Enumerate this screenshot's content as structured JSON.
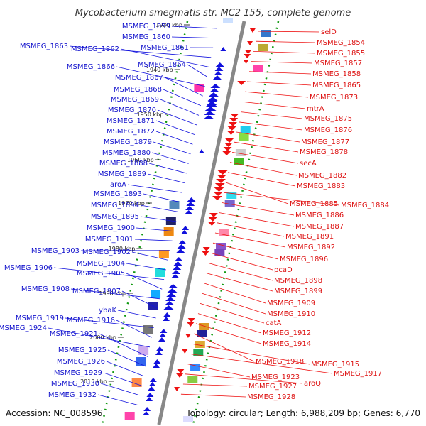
{
  "title": "Mycobacterium smegmatis str. MC2 155, complete genome",
  "footer": {
    "accession": "Accession: NC_008596",
    "topology": "Topology: circular; Length: 6,988,209 bp; Genes: 6,770"
  },
  "colors": {
    "forward": "#1111dd",
    "reverse": "#ee1111",
    "axis": "#888888",
    "ticks": "#119911"
  },
  "scale": {
    "ticks": [
      "1930 kbp",
      "1940 kbp",
      "1950 kbp",
      "1960 kbp",
      "1970 kbp",
      "1980 kbp",
      "1990 kbp",
      "2000 kbp",
      "2010 kbp"
    ]
  },
  "left_labels": [
    "MSMEG_1859",
    "MSMEG_1860",
    "MSMEG_1861",
    "MSMEG_1863",
    "MSMEG_1862",
    "MSMEG_1864",
    "MSMEG_1866",
    "MSMEG_1867",
    "MSMEG_1868",
    "MSMEG_1869",
    "MSMEG_1870",
    "MSMEG_1871",
    "MSMEG_1872",
    "MSMEG_1879",
    "MSMEG_1880",
    "MSMEG_1888",
    "MSMEG_1889",
    "aroA",
    "MSMEG_1893",
    "MSMEG_1894",
    "MSMEG_1895",
    "MSMEG_1900",
    "MSMEG_1901",
    "MSMEG_1903",
    "MSMEG_1902",
    "MSMEG_1904",
    "MSMEG_1906",
    "MSMEG_1905",
    "MSMEG_1908",
    "MSMEG_1907",
    "ybaK",
    "MSMEG_1919",
    "MSMEG_1916",
    "MSMEG_1924",
    "MSMEG_1921",
    "MSMEG_1925",
    "MSMEG_1926",
    "MSMEG_1929",
    "MSMEG_1930",
    "MSMEG_1932"
  ],
  "right_labels": [
    "selD",
    "MSMEG_1854",
    "MSMEG_1855",
    "MSMEG_1857",
    "MSMEG_1858",
    "MSMEG_1865",
    "MSMEG_1873",
    "mtrA",
    "MSMEG_1875",
    "MSMEG_1876",
    "MSMEG_1877",
    "MSMEG_1878",
    "secA",
    "MSMEG_1882",
    "MSMEG_1883",
    "MSMEG_1885",
    "MSMEG_1884",
    "MSMEG_1886",
    "MSMEG_1887",
    "MSMEG_1891",
    "MSMEG_1892",
    "MSMEG_1896",
    "pcaD",
    "MSMEG_1898",
    "MSMEG_1899",
    "MSMEG_1909",
    "MSMEG_1910",
    "catA",
    "MSMEG_1912",
    "MSMEG_1914",
    "MSMEG_1918",
    "MSMEG_1915",
    "MSMEG_1917",
    "MSMEG_1923",
    "aroQ",
    "MSMEG_1927",
    "MSMEG_1928"
  ]
}
